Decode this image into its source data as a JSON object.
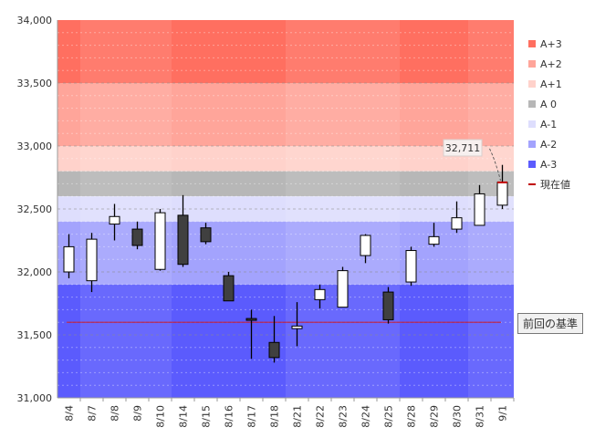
{
  "chart_data": {
    "type": "candlestick",
    "title": "",
    "xlabel": "",
    "ylabel": "",
    "ylim": [
      31000,
      34000
    ],
    "yticks": [
      "31,000",
      "31,500",
      "32,000",
      "32,500",
      "33,000",
      "33,500",
      "34,000"
    ],
    "ytick_values": [
      31000,
      31500,
      32000,
      32500,
      33000,
      33500,
      34000
    ],
    "categories": [
      "8/4",
      "8/7",
      "8/8",
      "8/9",
      "8/10",
      "8/14",
      "8/15",
      "8/16",
      "8/17",
      "8/18",
      "8/21",
      "8/22",
      "8/23",
      "8/24",
      "8/25",
      "8/28",
      "8/29",
      "8/30",
      "8/31",
      "9/1"
    ],
    "open": [
      32000,
      31930,
      32380,
      32340,
      32020,
      32450,
      32350,
      31970,
      31630,
      31440,
      31550,
      31780,
      31720,
      32130,
      31840,
      31920,
      32220,
      32340,
      32370,
      32530
    ],
    "close": [
      32200,
      32260,
      32440,
      32210,
      32470,
      32060,
      32240,
      31770,
      31620,
      31320,
      31570,
      31860,
      32010,
      32290,
      31620,
      32170,
      32280,
      32430,
      32620,
      32711
    ],
    "high": [
      32300,
      32310,
      32540,
      32400,
      32500,
      32610,
      32390,
      32000,
      31700,
      31650,
      31760,
      31900,
      32040,
      32300,
      31880,
      32200,
      32390,
      32560,
      32690,
      32850
    ],
    "low": [
      31950,
      31840,
      32250,
      32180,
      32010,
      32040,
      32220,
      31770,
      31310,
      31280,
      31410,
      31710,
      31720,
      32070,
      31590,
      31890,
      32200,
      32310,
      32370,
      32500
    ],
    "bands": [
      {
        "name": "A+3",
        "from": 33500,
        "to": 34000,
        "color": "#ff6f60"
      },
      {
        "name": "A+2",
        "from": 33000,
        "to": 33500,
        "color": "#ffa59a"
      },
      {
        "name": "A+1",
        "from": 32800,
        "to": 33000,
        "color": "#ffd2cb"
      },
      {
        "name": "A 0",
        "from": 32600,
        "to": 32800,
        "color": "#b7b7b7"
      },
      {
        "name": "A-1",
        "from": 32400,
        "to": 32600,
        "color": "#dedefd"
      },
      {
        "name": "A-2",
        "from": 31900,
        "to": 32400,
        "color": "#a3a3fd"
      },
      {
        "name": "A-3",
        "from": 31000,
        "to": 31900,
        "color": "#5b5bfd"
      }
    ],
    "current_value": 32711,
    "current_value_label": "32,711",
    "current_value_legend": "現在値",
    "current_value_color": "#c00000",
    "previous_base": 31600,
    "previous_base_label": "前回の基準",
    "previous_base_color": "#c0203c",
    "bull_color": "#ffffff",
    "bear_color": "#404040",
    "legend_position": "right"
  }
}
